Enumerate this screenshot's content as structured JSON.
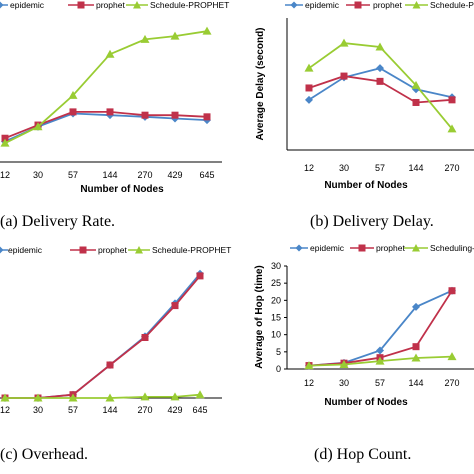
{
  "chart_data": [
    {
      "type": "line",
      "caption": "(a) Delivery Rate.",
      "xlabel": "Number of Nodes",
      "ylabel": "",
      "categories": [
        "12",
        "30",
        "57",
        "144",
        "270",
        "429",
        "645"
      ],
      "legend_position": "top",
      "grid": false,
      "series": [
        {
          "name": "epidemic",
          "color": "#4a86c8",
          "marker": "diamond",
          "values": [
            0.1,
            0.19,
            0.27,
            0.26,
            0.25,
            0.24,
            0.23
          ]
        },
        {
          "name": "prophet",
          "color": "#c0314a",
          "marker": "square",
          "values": [
            0.12,
            0.2,
            0.28,
            0.28,
            0.26,
            0.26,
            0.25
          ]
        },
        {
          "name": "Schedule-PROPHET",
          "color": "#99cc33",
          "marker": "triangle",
          "values": [
            0.09,
            0.19,
            0.38,
            0.63,
            0.72,
            0.74,
            0.77
          ]
        }
      ]
    },
    {
      "type": "line",
      "caption": "(b) Delivery Delay.",
      "xlabel": "Number of Nodes",
      "ylabel": "Average Delay (second)",
      "categories": [
        "12",
        "30",
        "57",
        "144",
        "270"
      ],
      "legend_position": "top",
      "grid": false,
      "series": [
        {
          "name": "epidemic",
          "color": "#4a86c8",
          "marker": "diamond",
          "values": [
            3.9,
            4.75,
            5.1,
            4.3,
            4.0
          ]
        },
        {
          "name": "prophet",
          "color": "#c0314a",
          "marker": "square",
          "values": [
            4.35,
            4.8,
            4.6,
            3.8,
            3.9
          ]
        },
        {
          "name": "Schedule-PROPHET",
          "color": "#99cc33",
          "marker": "triangle",
          "values": [
            5.1,
            6.05,
            5.9,
            4.45,
            2.8
          ]
        }
      ]
    },
    {
      "type": "line",
      "caption": "(c) Overhead.",
      "xlabel": "",
      "ylabel": "",
      "categories": [
        "12",
        "30",
        "57",
        "144",
        "270",
        "429",
        "645"
      ],
      "legend_position": "top",
      "grid": false,
      "series": [
        {
          "name": "epidemic",
          "color": "#4a86c8",
          "marker": "diamond",
          "values": [
            0.0,
            0.0,
            0.03,
            0.3,
            0.56,
            0.86,
            1.13
          ]
        },
        {
          "name": "prophet",
          "color": "#c0314a",
          "marker": "square",
          "values": [
            0.0,
            0.0,
            0.03,
            0.3,
            0.55,
            0.84,
            1.11
          ]
        },
        {
          "name": "Schedule-PROPHET",
          "color": "#99cc33",
          "marker": "triangle",
          "values": [
            0.0,
            0.0,
            0.0,
            0.0,
            0.01,
            0.01,
            0.03
          ]
        }
      ]
    },
    {
      "type": "line",
      "caption": "(d) Hop Count.",
      "xlabel": "Number of Nodes",
      "ylabel": "Average of Hop (time)",
      "categories": [
        "12",
        "30",
        "57",
        "144",
        "270"
      ],
      "ylim": [
        0,
        30
      ],
      "yticks": [
        "0",
        "5",
        "10",
        "15",
        "20",
        "25",
        "30"
      ],
      "legend_position": "top",
      "grid": false,
      "series": [
        {
          "name": "epidemic",
          "color": "#4a86c8",
          "marker": "diamond",
          "values": [
            1.0,
            1.8,
            5.4,
            18.1,
            22.8
          ]
        },
        {
          "name": "prophet",
          "color": "#c0314a",
          "marker": "square",
          "values": [
            1.0,
            1.7,
            3.3,
            6.5,
            22.8
          ]
        },
        {
          "name": "Scheduling-PROPHET",
          "color": "#99cc33",
          "marker": "triangle",
          "values": [
            1.0,
            1.3,
            2.3,
            3.2,
            3.6
          ]
        }
      ]
    }
  ]
}
